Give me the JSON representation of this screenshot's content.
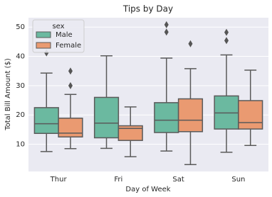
{
  "chart_data": {
    "type": "box",
    "title": "Tips by Day",
    "xlabel": "Day of Week",
    "ylabel": "Total Bill Amount ($)",
    "categories": [
      "Thur",
      "Fri",
      "Sat",
      "Sun"
    ],
    "legend_title": "sex",
    "legend": "upper left",
    "grid": true,
    "ylim": [
      0.7,
      53.2
    ],
    "yticks": [
      10,
      20,
      30,
      40,
      50
    ],
    "series": [
      {
        "name": "Male",
        "color": "#6bb9a0",
        "whislo": [
          7.5,
          8.6,
          7.7,
          7.25
        ],
        "q1": [
          13.7,
          12.2,
          14.0,
          15.2
        ],
        "median": [
          17.0,
          17.2,
          18.2,
          20.7
        ],
        "q3": [
          22.5,
          26.0,
          24.2,
          26.5
        ],
        "whishi": [
          34.3,
          40.2,
          39.4,
          40.5
        ],
        "fliers": [
          [
            41.2
          ],
          [],
          [
            48.3,
            50.8
          ],
          [
            45.4,
            48.2
          ]
        ]
      },
      {
        "name": "Female",
        "color": "#ea9a71",
        "whislo": [
          8.5,
          5.75,
          3.07,
          9.6
        ],
        "q1": [
          12.5,
          11.3,
          14.3,
          15.2
        ],
        "median": [
          13.8,
          15.4,
          18.2,
          17.4
        ],
        "q3": [
          18.9,
          16.3,
          25.5,
          24.9
        ],
        "whishi": [
          27.0,
          22.75,
          35.8,
          35.3
        ],
        "fliers": [
          [
            30.0,
            35.0
          ],
          [],
          [
            44.3
          ],
          []
        ]
      }
    ]
  }
}
